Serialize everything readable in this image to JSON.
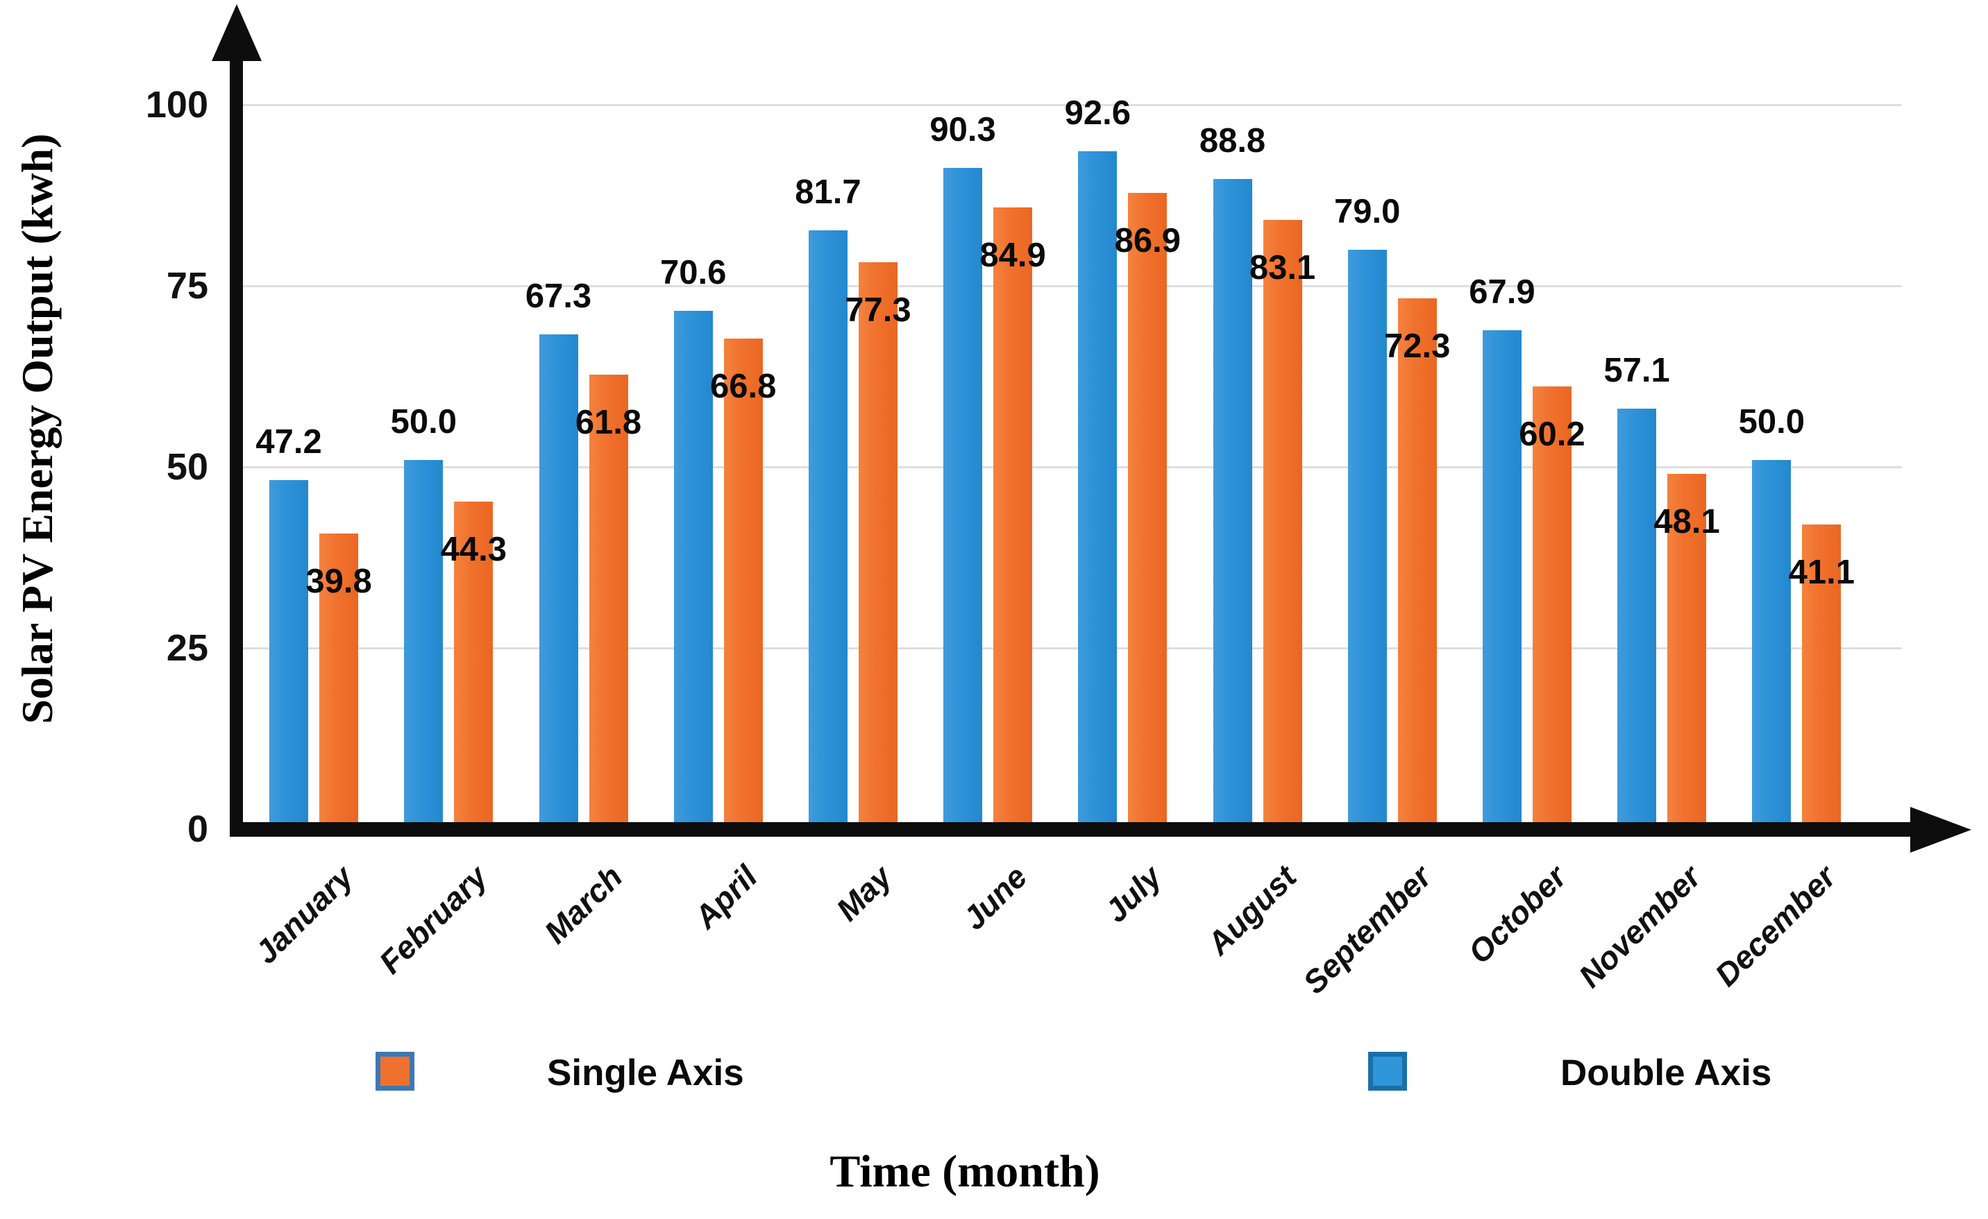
{
  "figure": {
    "y_axis_title": "Solar PV Energy Output (kwh)",
    "x_axis_title": "Time (month)"
  },
  "legend": {
    "items": [
      {
        "label": "Single Axis",
        "color": "#f0712d",
        "border": "#3b79b5"
      },
      {
        "label": "Double Axis",
        "color": "#2e96d9",
        "border": "#1c6fa8"
      }
    ]
  },
  "chart_data": {
    "type": "bar",
    "title": "",
    "xlabel": "Time (month)",
    "ylabel": "Solar PV Energy Output (kwh)",
    "categories": [
      "January",
      "February",
      "March",
      "April",
      "May",
      "June",
      "July",
      "August",
      "September",
      "October",
      "November",
      "December"
    ],
    "series": [
      {
        "name": "Double Axis",
        "color": "#2e96d9",
        "values": [
          47.2,
          50.0,
          67.3,
          70.6,
          81.7,
          90.3,
          92.6,
          88.8,
          79.0,
          67.9,
          57.1,
          50.0
        ]
      },
      {
        "name": "Single Axis",
        "color": "#f0712d",
        "values": [
          39.8,
          44.3,
          61.8,
          66.8,
          77.3,
          84.9,
          86.9,
          83.1,
          72.3,
          60.2,
          48.1,
          41.1
        ]
      }
    ],
    "ylim": [
      0,
      108
    ],
    "yticks": [
      0,
      25,
      50,
      75,
      100
    ],
    "grid": true,
    "value_label_format": "1-decimal",
    "legend_position": "bottom"
  }
}
